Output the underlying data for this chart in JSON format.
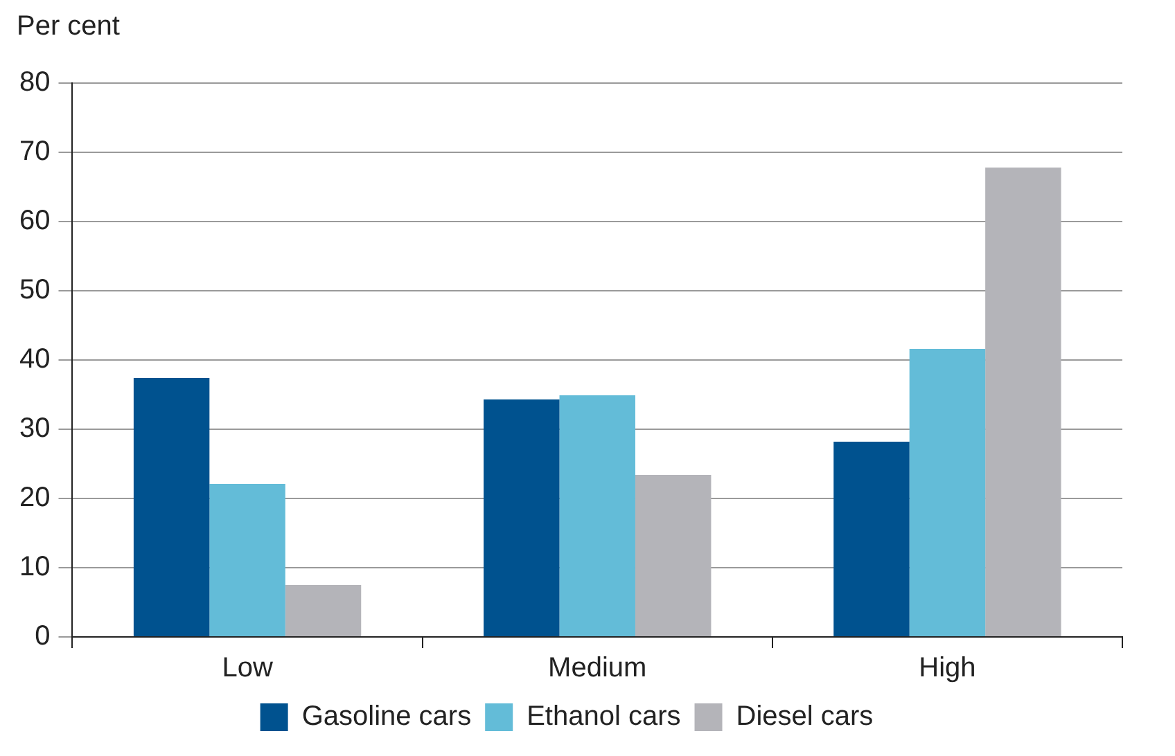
{
  "chart_data": {
    "type": "bar",
    "ylabel": "Per cent",
    "categories": [
      "Low",
      "Medium",
      "High"
    ],
    "series": [
      {
        "name": "Gasoline cars",
        "color": "#00528f",
        "values": [
          37.4,
          34.3,
          28.2
        ]
      },
      {
        "name": "Ethanol cars",
        "color": "#63bcd8",
        "values": [
          22.1,
          34.9,
          41.6
        ]
      },
      {
        "name": "Diesel cars",
        "color": "#b4b4b9",
        "values": [
          7.5,
          23.4,
          67.8
        ]
      }
    ],
    "ylim": [
      0,
      80
    ],
    "yticks": [
      0,
      10,
      20,
      30,
      40,
      50,
      60,
      70,
      80
    ],
    "grid": "y",
    "legend": "bottom"
  }
}
